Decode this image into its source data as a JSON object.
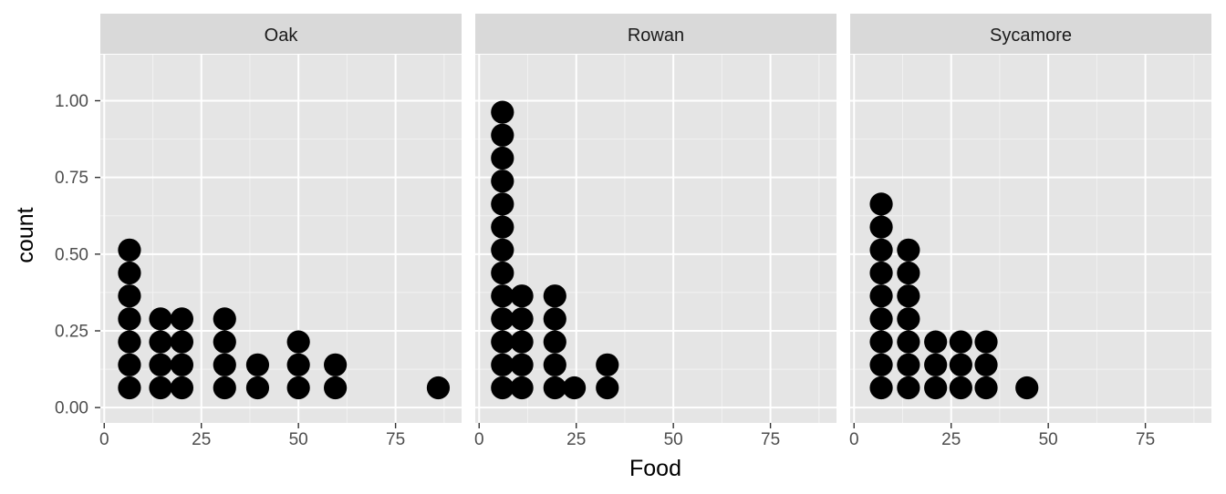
{
  "chart_data": {
    "type": "dotplot",
    "xlabel": "Food",
    "ylabel": "count",
    "xlim": [
      -1,
      92
    ],
    "ylim": [
      -0.05,
      1.15
    ],
    "x_ticks": [
      0,
      25,
      50,
      75
    ],
    "x_tick_labels": [
      "0",
      "25",
      "50",
      "75"
    ],
    "y_ticks": [
      0.0,
      0.25,
      0.5,
      0.75,
      1.0
    ],
    "y_tick_labels": [
      "0.00",
      "0.25",
      "0.50",
      "0.75",
      "1.00"
    ],
    "grid": true,
    "dot_color": "#000000",
    "panel_background": "#e5e5e5",
    "strip_background": "#d9d9d9",
    "panels": [
      {
        "label": "Oak",
        "stacks": [
          {
            "x": 6.5,
            "count": 7
          },
          {
            "x": 14.5,
            "count": 4
          },
          {
            "x": 20,
            "count": 4
          },
          {
            "x": 31,
            "count": 4
          },
          {
            "x": 39.5,
            "count": 2
          },
          {
            "x": 50,
            "count": 3
          },
          {
            "x": 59.5,
            "count": 2
          },
          {
            "x": 86,
            "count": 1
          }
        ]
      },
      {
        "label": "Rowan",
        "stacks": [
          {
            "x": 6,
            "count": 13
          },
          {
            "x": 11,
            "count": 5
          },
          {
            "x": 19.5,
            "count": 5
          },
          {
            "x": 24.5,
            "count": 1
          },
          {
            "x": 33,
            "count": 2
          }
        ]
      },
      {
        "label": "Sycamore",
        "stacks": [
          {
            "x": 7,
            "count": 9
          },
          {
            "x": 14,
            "count": 7
          },
          {
            "x": 21,
            "count": 3
          },
          {
            "x": 27.5,
            "count": 3
          },
          {
            "x": 34,
            "count": 3
          },
          {
            "x": 44.5,
            "count": 1
          }
        ]
      }
    ]
  }
}
